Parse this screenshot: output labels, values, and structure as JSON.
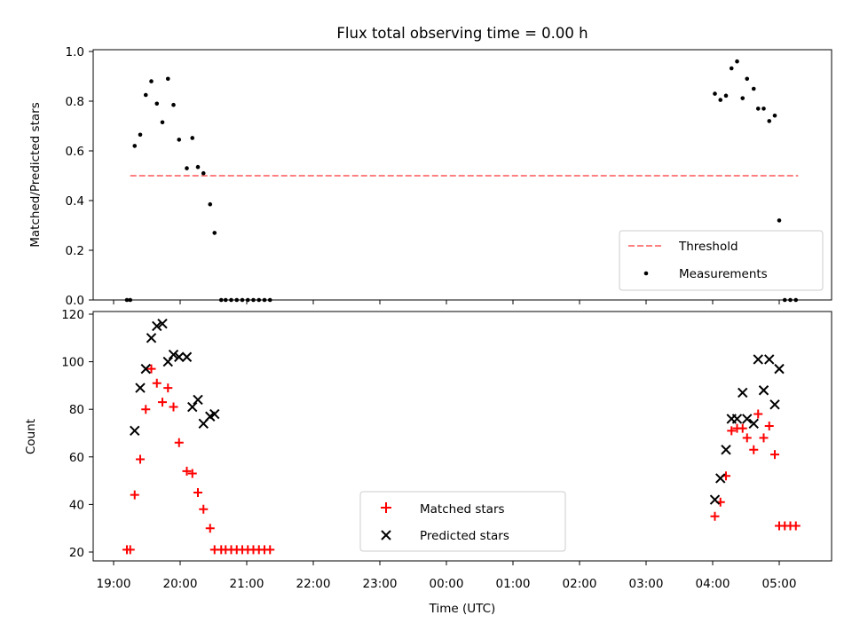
{
  "title": "Flux total observing time = 0.00 h",
  "chart_data": [
    {
      "type": "scatter",
      "ylabel": "Matched/Predicted stars",
      "ylim": [
        0.0,
        1.0
      ],
      "yticks": [
        "0.0",
        "0.2",
        "0.4",
        "0.6",
        "0.8",
        "1.0"
      ],
      "legend_position": "lower-right",
      "threshold": {
        "name": "Threshold",
        "value": 0.5,
        "x_start": "19:15",
        "x_end": "05:17",
        "color": "#ff8080",
        "style": "dashed"
      },
      "series": [
        {
          "name": "Measurements",
          "color": "#000000",
          "marker": "dot",
          "points": [
            [
              "19:12",
              0.0
            ],
            [
              "19:15",
              0.0
            ],
            [
              "19:19",
              0.62
            ],
            [
              "19:24",
              0.665
            ],
            [
              "19:29",
              0.825
            ],
            [
              "19:34",
              0.88
            ],
            [
              "19:39",
              0.79
            ],
            [
              "19:44",
              0.715
            ],
            [
              "19:49",
              0.89
            ],
            [
              "19:54",
              0.785
            ],
            [
              "19:59",
              0.645
            ],
            [
              "20:06",
              0.53
            ],
            [
              "20:11",
              0.652
            ],
            [
              "20:16",
              0.535
            ],
            [
              "20:21",
              0.51
            ],
            [
              "20:27",
              0.385
            ],
            [
              "20:31",
              0.27
            ],
            [
              "20:37",
              0.0
            ],
            [
              "20:41",
              0.0
            ],
            [
              "20:46",
              0.0
            ],
            [
              "20:51",
              0.0
            ],
            [
              "20:56",
              0.0
            ],
            [
              "21:01",
              0.0
            ],
            [
              "21:06",
              0.0
            ],
            [
              "21:11",
              0.0
            ],
            [
              "21:16",
              0.0
            ],
            [
              "21:21",
              0.0
            ],
            [
              "04:02",
              0.83
            ],
            [
              "04:07",
              0.805
            ],
            [
              "04:12",
              0.822
            ],
            [
              "04:17",
              0.932
            ],
            [
              "04:22",
              0.96
            ],
            [
              "04:27",
              0.812
            ],
            [
              "04:31",
              0.89
            ],
            [
              "04:37",
              0.85
            ],
            [
              "04:41",
              0.77
            ],
            [
              "04:46",
              0.77
            ],
            [
              "04:51",
              0.72
            ],
            [
              "04:56",
              0.742
            ],
            [
              "05:00",
              0.32
            ],
            [
              "05:05",
              0.0
            ],
            [
              "05:10",
              0.0
            ],
            [
              "05:15",
              0.0
            ]
          ]
        }
      ]
    },
    {
      "type": "scatter",
      "xlabel": "Time (UTC)",
      "ylabel": "Count",
      "ylim": [
        16,
        121
      ],
      "yticks": [
        "20",
        "40",
        "60",
        "80",
        "100",
        "120"
      ],
      "xticks": [
        "19:00",
        "20:00",
        "21:00",
        "22:00",
        "23:00",
        "00:00",
        "01:00",
        "02:00",
        "03:00",
        "04:00",
        "05:00"
      ],
      "legend_position": "lower-center",
      "series": [
        {
          "name": "Matched stars",
          "color": "#ff0000",
          "marker": "plus",
          "points": [
            [
              "19:12",
              21
            ],
            [
              "19:15",
              21
            ],
            [
              "19:19",
              44
            ],
            [
              "19:24",
              59
            ],
            [
              "19:29",
              80
            ],
            [
              "19:34",
              97
            ],
            [
              "19:39",
              91
            ],
            [
              "19:44",
              83
            ],
            [
              "19:49",
              89
            ],
            [
              "19:54",
              81
            ],
            [
              "19:59",
              66
            ],
            [
              "20:06",
              54
            ],
            [
              "20:11",
              53
            ],
            [
              "20:16",
              45
            ],
            [
              "20:21",
              38
            ],
            [
              "20:27",
              30
            ],
            [
              "20:31",
              21
            ],
            [
              "20:37",
              21
            ],
            [
              "20:41",
              21
            ],
            [
              "20:46",
              21
            ],
            [
              "20:51",
              21
            ],
            [
              "20:56",
              21
            ],
            [
              "21:01",
              21
            ],
            [
              "21:06",
              21
            ],
            [
              "21:11",
              21
            ],
            [
              "21:16",
              21
            ],
            [
              "21:21",
              21
            ],
            [
              "04:02",
              35
            ],
            [
              "04:07",
              41
            ],
            [
              "04:12",
              52
            ],
            [
              "04:17",
              71
            ],
            [
              "04:22",
              72
            ],
            [
              "04:27",
              72
            ],
            [
              "04:31",
              68
            ],
            [
              "04:37",
              63
            ],
            [
              "04:41",
              78
            ],
            [
              "04:46",
              68
            ],
            [
              "04:51",
              73
            ],
            [
              "04:56",
              61
            ],
            [
              "05:00",
              31
            ],
            [
              "05:05",
              31
            ],
            [
              "05:10",
              31
            ],
            [
              "05:15",
              31
            ]
          ]
        },
        {
          "name": "Predicted stars",
          "color": "#000000",
          "marker": "x",
          "points": [
            [
              "19:19",
              71
            ],
            [
              "19:24",
              89
            ],
            [
              "19:29",
              97
            ],
            [
              "19:34",
              110
            ],
            [
              "19:39",
              115
            ],
            [
              "19:44",
              116
            ],
            [
              "19:49",
              100
            ],
            [
              "19:54",
              103
            ],
            [
              "19:59",
              102
            ],
            [
              "20:06",
              102
            ],
            [
              "20:11",
              81
            ],
            [
              "20:16",
              84
            ],
            [
              "20:21",
              74
            ],
            [
              "20:27",
              77
            ],
            [
              "20:31",
              78
            ],
            [
              "04:02",
              42
            ],
            [
              "04:07",
              51
            ],
            [
              "04:12",
              63
            ],
            [
              "04:17",
              76
            ],
            [
              "04:22",
              76
            ],
            [
              "04:27",
              87
            ],
            [
              "04:31",
              76
            ],
            [
              "04:37",
              74
            ],
            [
              "04:41",
              101
            ],
            [
              "04:46",
              88
            ],
            [
              "04:51",
              101
            ],
            [
              "04:56",
              82
            ],
            [
              "05:00",
              97
            ]
          ]
        }
      ]
    }
  ]
}
